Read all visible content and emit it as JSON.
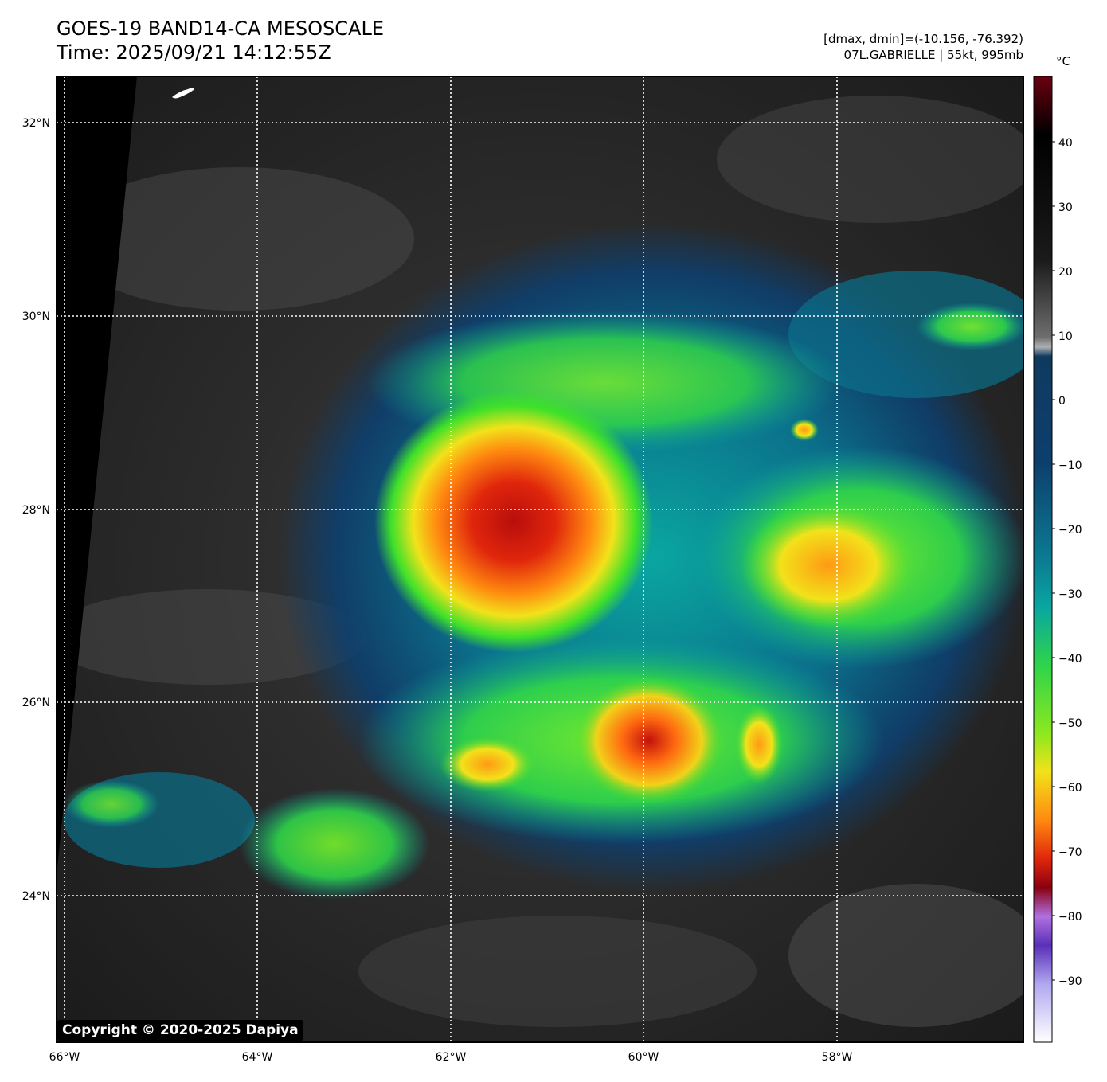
{
  "header": {
    "title": "GOES-19 BAND14-CA MESOSCALE",
    "time": "Time: 2025/09/21 14:12:55Z",
    "range_info": "[dmax, dmin]=(-10.156, -76.392)",
    "storm_info": "07L.GABRIELLE | 55kt, 995mb"
  },
  "map": {
    "lon_labels": [
      "66°W",
      "64°W",
      "62°W",
      "60°W",
      "58°W"
    ],
    "lat_labels": [
      "32°N",
      "30°N",
      "28°N",
      "26°N",
      "24°N"
    ],
    "grid": "dotted white",
    "copyright": "Copyright © 2020-2025 Dapiya"
  },
  "colorbar": {
    "unit": "°C",
    "ticks": [
      "40",
      "30",
      "20",
      "10",
      "0",
      "−10",
      "−20",
      "−30",
      "−40",
      "−50",
      "−60",
      "−70",
      "−80",
      "−90"
    ],
    "colors": {
      "warm": "#000000",
      "gray": "#a0a0a0",
      "blue": "#0d3f6e",
      "teal": "#0aa6a0",
      "green": "#3fe12a",
      "yellow": "#f2e21a",
      "orange": "#ff7d10",
      "red": "#d0160c",
      "darkred": "#6a0010",
      "purple": "#6b3cc8",
      "white": "#ffffff"
    }
  }
}
